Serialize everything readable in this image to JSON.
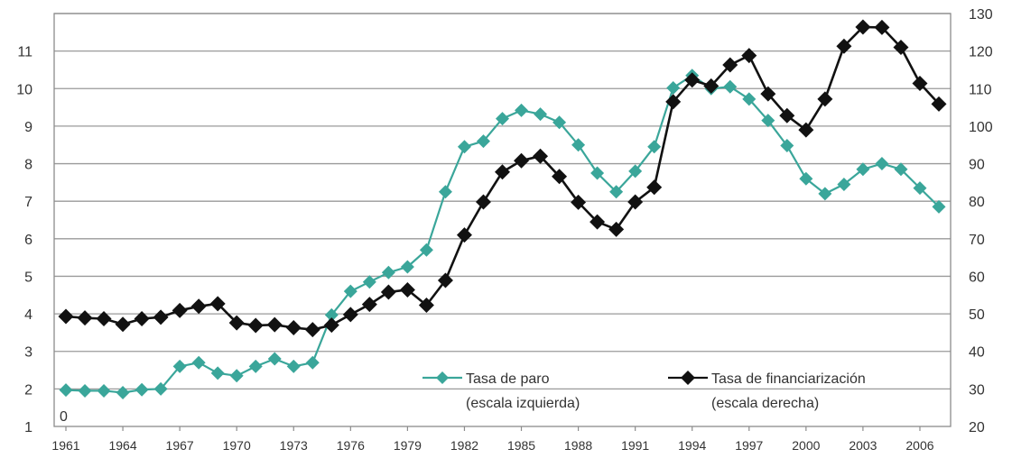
{
  "chart_data": {
    "type": "line",
    "x": [
      1961,
      1962,
      1963,
      1964,
      1965,
      1966,
      1967,
      1968,
      1969,
      1970,
      1971,
      1972,
      1973,
      1974,
      1975,
      1976,
      1977,
      1978,
      1979,
      1980,
      1981,
      1982,
      1983,
      1984,
      1985,
      1986,
      1987,
      1988,
      1989,
      1990,
      1991,
      1992,
      1993,
      1994,
      1995,
      1996,
      1997,
      1998,
      1999,
      2000,
      2001,
      2002,
      2003,
      2004,
      2005,
      2006,
      2007
    ],
    "x_ticks": [
      "1961",
      "1964",
      "1967",
      "1970",
      "1973",
      "1976",
      "1979",
      "1982",
      "1985",
      "1988",
      "1991",
      "1994",
      "1997",
      "2000",
      "2003",
      "2006"
    ],
    "y_left": {
      "range": [
        1,
        12
      ],
      "ticks": [
        "1",
        "2",
        "3",
        "4",
        "5",
        "6",
        "7",
        "8",
        "9",
        "10",
        "11"
      ],
      "origin_label": "0"
    },
    "y_right": {
      "range": [
        20,
        130
      ],
      "ticks": [
        "20",
        "30",
        "40",
        "50",
        "60",
        "70",
        "80",
        "90",
        "100",
        "110",
        "120",
        "130"
      ]
    },
    "grid": "horizontal",
    "legend_position": "bottom-right",
    "series": [
      {
        "name": "Tasa de paro",
        "name_line2": "(escala izquierda)",
        "axis": "left",
        "color": "#3aa69a",
        "marker": "diamond",
        "values": [
          1.97,
          1.95,
          1.95,
          1.9,
          1.98,
          2.0,
          2.6,
          2.7,
          2.42,
          2.35,
          2.6,
          2.8,
          2.6,
          2.7,
          3.97,
          4.6,
          4.85,
          5.1,
          5.25,
          5.7,
          7.25,
          8.45,
          8.6,
          9.2,
          9.42,
          9.32,
          9.1,
          8.5,
          7.75,
          7.25,
          7.8,
          8.45,
          10.02,
          10.35,
          10.0,
          10.05,
          9.72,
          9.15,
          8.48,
          7.6,
          7.2,
          7.45,
          7.85,
          8.0,
          7.85,
          7.35,
          6.85
        ]
      },
      {
        "name": "Tasa de financiarización",
        "name_line2": "(escala derecha)",
        "axis": "right",
        "color": "#111111",
        "marker": "diamond",
        "values": [
          49.3,
          48.9,
          48.7,
          47.2,
          48.7,
          49.1,
          50.9,
          52.0,
          52.7,
          47.6,
          46.9,
          47.1,
          46.3,
          45.8,
          47.0,
          49.8,
          52.5,
          55.8,
          56.4,
          52.3,
          58.9,
          71.0,
          79.8,
          87.8,
          90.8,
          92.0,
          86.6,
          79.7,
          74.5,
          72.5,
          79.8,
          83.7,
          106.5,
          112.3,
          110.7,
          116.3,
          118.8,
          108.6,
          102.8,
          99.0,
          107.2,
          121.3,
          126.4,
          126.3,
          121.0,
          111.4,
          105.9
        ]
      }
    ]
  },
  "colors": {
    "paro": "#3aa69a",
    "financiarizacion": "#111111",
    "grid": "#9a9a9a"
  }
}
